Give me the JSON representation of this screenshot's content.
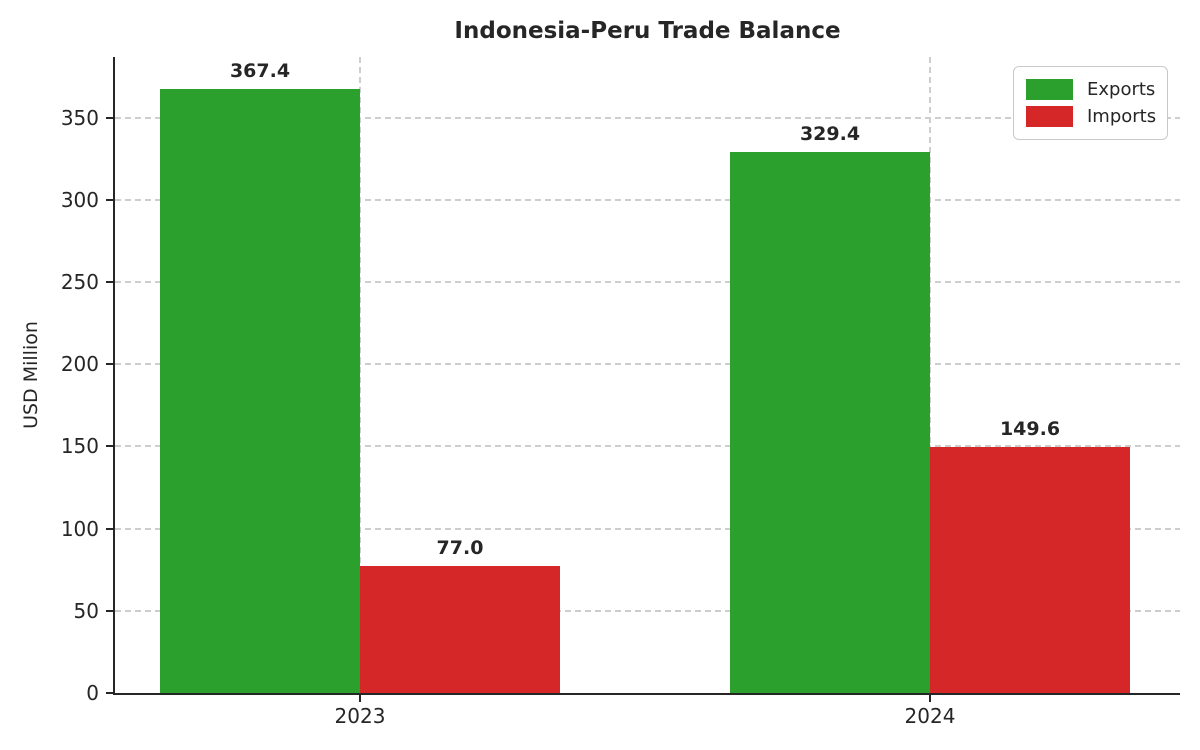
{
  "chart_data": {
    "type": "bar",
    "title": "Indonesia-Peru Trade Balance",
    "xlabel": "",
    "ylabel": "USD Million",
    "categories": [
      "2023",
      "2024"
    ],
    "series": [
      {
        "name": "Exports",
        "color": "#2ca02c",
        "values": [
          367.4,
          329.4
        ],
        "value_labels": [
          "367.4",
          "329.4"
        ]
      },
      {
        "name": "Imports",
        "color": "#d62728",
        "values": [
          77.0,
          149.6
        ],
        "value_labels": [
          "77.0",
          "149.6"
        ]
      }
    ],
    "yticks": [
      0,
      50,
      100,
      150,
      200,
      250,
      300,
      350
    ],
    "ylim": [
      0,
      387
    ],
    "grid": "dashed light-gray horizontal lines at each ytick and vertical lines at category centers",
    "legend_position": "upper right",
    "legend_labels": [
      "Exports",
      "Imports"
    ]
  },
  "colors": {
    "exports": "#2ca02c",
    "imports": "#d62728",
    "text": "#262626",
    "grid": "#cdcdcd",
    "spine": "#262626",
    "background": "#ffffff"
  }
}
